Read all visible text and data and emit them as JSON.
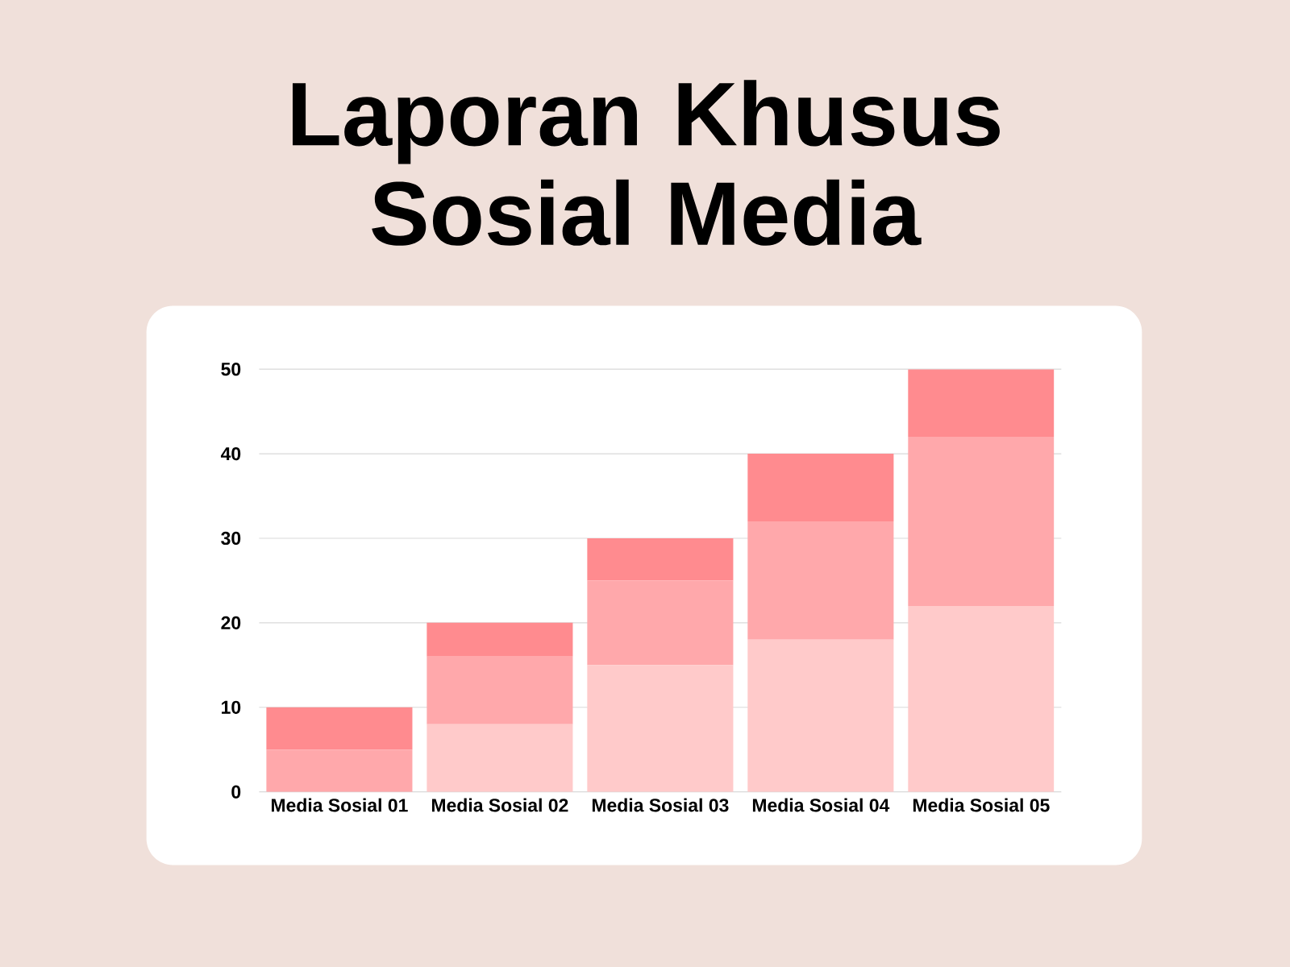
{
  "chart_data": {
    "type": "bar",
    "title": "Laporan Khusus\nSosial Media",
    "stacked": true,
    "grid": "y",
    "categories": [
      "Media Sosial 01",
      "Media Sosial 02",
      "Media Sosial 03",
      "Media Sosial 04",
      "Media Sosial 05"
    ],
    "series": [
      {
        "color": "#ffcaca",
        "values": [
          0,
          8,
          15,
          18,
          22
        ]
      },
      {
        "color": "#ffa8ab",
        "values": [
          5,
          8,
          10,
          14,
          20
        ]
      },
      {
        "color": "#ff8b8f",
        "values": [
          5,
          4,
          5,
          8,
          8
        ]
      }
    ],
    "ylim": [
      0,
      50
    ],
    "yticks": [
      0,
      10,
      20,
      30,
      40,
      50
    ]
  }
}
